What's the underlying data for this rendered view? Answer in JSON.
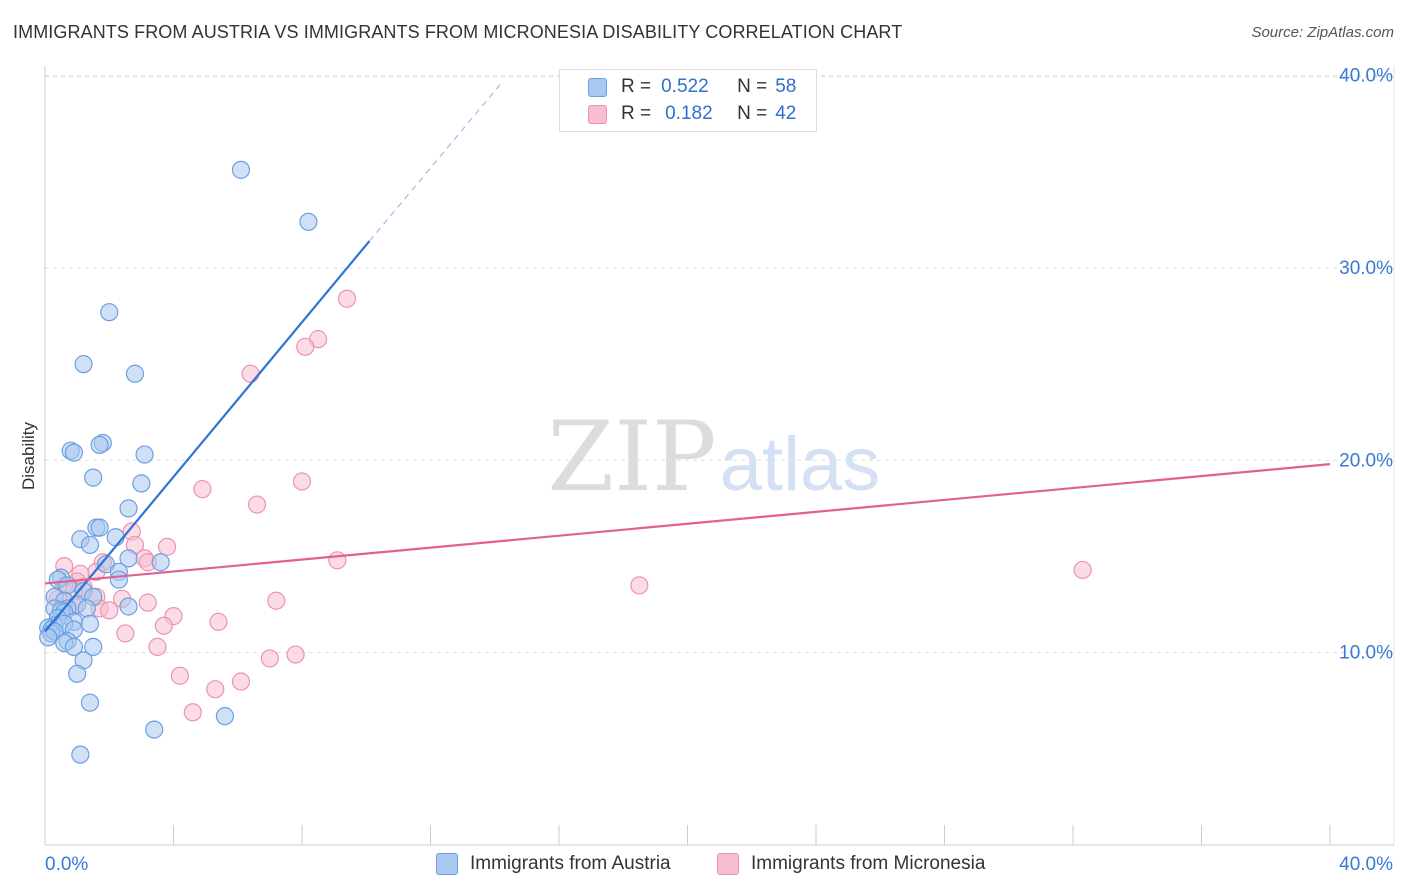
{
  "header": {
    "title": "IMMIGRANTS FROM AUSTRIA VS IMMIGRANTS FROM MICRONESIA DISABILITY CORRELATION CHART",
    "source": "Source: ZipAtlas.com"
  },
  "watermark": {
    "zip": "ZIP",
    "atlas": "atlas"
  },
  "legend": {
    "r_label": "R =",
    "n_label": "N =",
    "austria": {
      "r": "0.522",
      "n": "58"
    },
    "micronesia": {
      "r": "0.182",
      "n": "42"
    }
  },
  "colors": {
    "austria_fill": "#a9c8f1",
    "austria_stroke": "#6c9fe0",
    "austria_line": "#2f74d2",
    "micronesia_fill": "#f7bed0",
    "micronesia_stroke": "#ec94b0",
    "micronesia_line": "#e2608e",
    "tick_label": "#3a78d4"
  },
  "chart_data": {
    "type": "scatter",
    "title": "IMMIGRANTS FROM AUSTRIA VS IMMIGRANTS FROM MICRONESIA DISABILITY CORRELATION CHART",
    "xlabel": "",
    "ylabel": "Disability",
    "xlim": [
      0,
      40
    ],
    "ylim": [
      0,
      40.5
    ],
    "x_tick_labels": [
      "0.0%",
      "40.0%"
    ],
    "y_ticks": [
      10,
      20,
      30,
      40
    ],
    "y_tick_labels": [
      "10.0%",
      "20.0%",
      "30.0%",
      "40.0%"
    ],
    "grid": true,
    "legend_position": "bottom",
    "series": [
      {
        "name": "Immigrants from Austria",
        "r": 0.522,
        "n": 58,
        "trendline": {
          "x": [
            0,
            10.1
          ],
          "y": [
            11.1,
            31.4
          ],
          "dashed_to": {
            "x": 14.2,
            "y": 39.6
          }
        },
        "points": [
          [
            6.1,
            35.1
          ],
          [
            8.2,
            32.4
          ],
          [
            2.0,
            27.7
          ],
          [
            1.2,
            25.0
          ],
          [
            2.8,
            24.5
          ],
          [
            0.8,
            20.5
          ],
          [
            0.9,
            20.4
          ],
          [
            1.8,
            20.9
          ],
          [
            1.7,
            20.8
          ],
          [
            3.1,
            20.3
          ],
          [
            1.5,
            19.1
          ],
          [
            3.0,
            18.8
          ],
          [
            2.6,
            17.5
          ],
          [
            1.6,
            16.5
          ],
          [
            1.7,
            16.5
          ],
          [
            1.1,
            15.9
          ],
          [
            1.4,
            15.6
          ],
          [
            2.2,
            16.0
          ],
          [
            2.6,
            14.9
          ],
          [
            1.9,
            14.6
          ],
          [
            3.6,
            14.7
          ],
          [
            2.3,
            14.2
          ],
          [
            0.5,
            13.9
          ],
          [
            0.4,
            13.8
          ],
          [
            2.3,
            13.8
          ],
          [
            0.7,
            13.5
          ],
          [
            1.2,
            13.2
          ],
          [
            0.3,
            12.9
          ],
          [
            0.6,
            12.7
          ],
          [
            1.5,
            12.9
          ],
          [
            1.0,
            12.5
          ],
          [
            2.6,
            12.4
          ],
          [
            0.3,
            12.3
          ],
          [
            0.7,
            12.3
          ],
          [
            0.5,
            12.2
          ],
          [
            1.3,
            12.3
          ],
          [
            0.6,
            12.1
          ],
          [
            0.4,
            11.8
          ],
          [
            0.9,
            11.6
          ],
          [
            0.3,
            11.4
          ],
          [
            0.6,
            11.5
          ],
          [
            1.4,
            11.5
          ],
          [
            0.1,
            11.3
          ],
          [
            0.2,
            11.2
          ],
          [
            0.9,
            11.2
          ],
          [
            0.2,
            11.0
          ],
          [
            0.3,
            11.1
          ],
          [
            0.1,
            10.8
          ],
          [
            0.7,
            10.6
          ],
          [
            0.6,
            10.5
          ],
          [
            1.5,
            10.3
          ],
          [
            0.9,
            10.3
          ],
          [
            1.2,
            9.6
          ],
          [
            1.0,
            8.9
          ],
          [
            1.4,
            7.4
          ],
          [
            5.6,
            6.7
          ],
          [
            3.4,
            6.0
          ],
          [
            1.1,
            4.7
          ]
        ]
      },
      {
        "name": "Immigrants from Micronesia",
        "r": 0.182,
        "n": 42,
        "trendline": {
          "x": [
            0,
            40
          ],
          "y": [
            13.6,
            19.8
          ]
        },
        "points": [
          [
            9.4,
            28.4
          ],
          [
            8.5,
            26.3
          ],
          [
            8.1,
            25.9
          ],
          [
            6.4,
            24.5
          ],
          [
            8.0,
            18.9
          ],
          [
            4.9,
            18.5
          ],
          [
            6.6,
            17.7
          ],
          [
            2.7,
            16.3
          ],
          [
            2.8,
            15.6
          ],
          [
            3.8,
            15.5
          ],
          [
            3.1,
            14.9
          ],
          [
            9.1,
            14.8
          ],
          [
            1.8,
            14.7
          ],
          [
            3.2,
            14.7
          ],
          [
            0.6,
            14.5
          ],
          [
            1.6,
            14.2
          ],
          [
            1.1,
            14.1
          ],
          [
            32.3,
            14.3
          ],
          [
            18.5,
            13.5
          ],
          [
            1.0,
            13.7
          ],
          [
            0.6,
            13.5
          ],
          [
            1.2,
            13.4
          ],
          [
            0.9,
            13.2
          ],
          [
            0.4,
            12.8
          ],
          [
            1.6,
            12.9
          ],
          [
            2.4,
            12.8
          ],
          [
            3.2,
            12.6
          ],
          [
            7.2,
            12.7
          ],
          [
            0.9,
            12.4
          ],
          [
            1.7,
            12.3
          ],
          [
            2.0,
            12.2
          ],
          [
            4.0,
            11.9
          ],
          [
            5.4,
            11.6
          ],
          [
            3.7,
            11.4
          ],
          [
            2.5,
            11.0
          ],
          [
            3.5,
            10.3
          ],
          [
            7.8,
            9.9
          ],
          [
            7.0,
            9.7
          ],
          [
            4.2,
            8.8
          ],
          [
            6.1,
            8.5
          ],
          [
            5.3,
            8.1
          ],
          [
            4.6,
            6.9
          ]
        ]
      }
    ]
  }
}
